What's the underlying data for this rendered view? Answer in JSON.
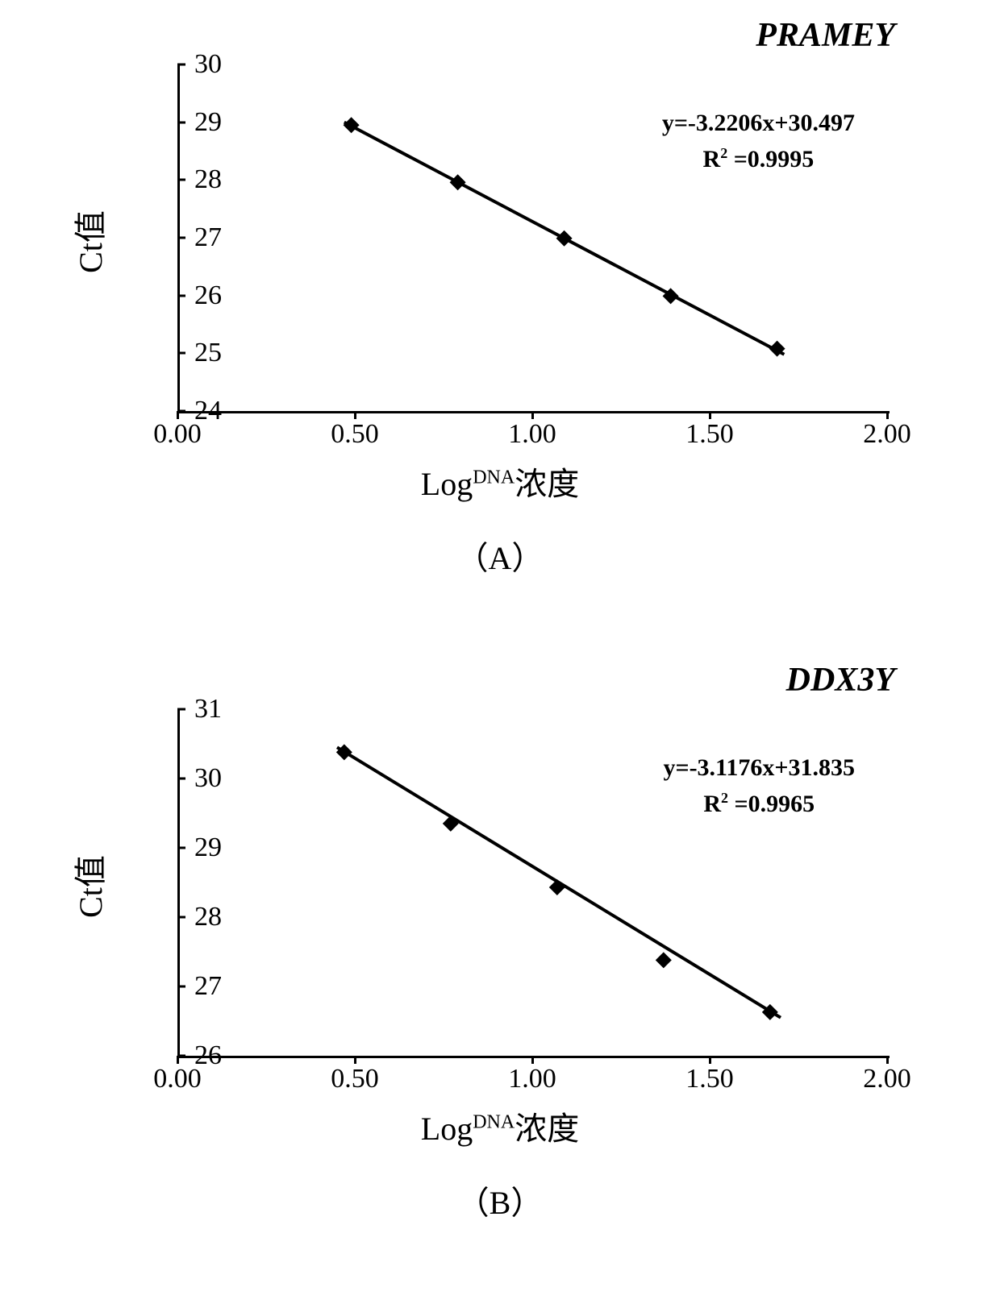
{
  "panels": [
    {
      "id": "A",
      "title": "PRAMEY",
      "panel_label": "（A）",
      "ylabel": "Ct值",
      "xlabel_prefix": "Log",
      "xlabel_super": "DNA",
      "xlabel_suffix": "浓度",
      "equation_line1": "y=-3.2206x+30.497",
      "equation_r2_label": "R",
      "equation_r2_value": " =0.9995",
      "xlim": [
        0.0,
        2.0
      ],
      "ylim": [
        24,
        30
      ],
      "xticks": [
        0.0,
        0.5,
        1.0,
        1.5,
        2.0
      ],
      "xtick_labels": [
        "0.00",
        "0.50",
        "1.00",
        "1.50",
        "2.00"
      ],
      "yticks": [
        24,
        25,
        26,
        27,
        28,
        29,
        30
      ],
      "ytick_labels": [
        "24",
        "25",
        "26",
        "27",
        "28",
        "29",
        "30"
      ],
      "points": [
        {
          "x": 0.49,
          "y": 28.95
        },
        {
          "x": 0.79,
          "y": 27.96
        },
        {
          "x": 1.09,
          "y": 26.99
        },
        {
          "x": 1.39,
          "y": 25.99
        },
        {
          "x": 1.69,
          "y": 25.08
        }
      ],
      "fit_line": {
        "x1": 0.47,
        "y1": 29.0,
        "x2": 1.71,
        "y2": 24.98
      },
      "line_color": "#000000",
      "marker_color": "#000000",
      "line_width": 4,
      "marker_size": 10,
      "background_color": "#ffffff",
      "title_fontsize": 42,
      "axis_label_fontsize": 40,
      "tick_fontsize": 34,
      "equation_fontsize": 30
    },
    {
      "id": "B",
      "title": "DDX3Y",
      "panel_label": "（B）",
      "ylabel": "Ct值",
      "xlabel_prefix": "Log",
      "xlabel_super": "DNA",
      "xlabel_suffix": "浓度",
      "equation_line1": "y=-3.1176x+31.835",
      "equation_r2_label": "R",
      "equation_r2_value": " =0.9965",
      "xlim": [
        0.0,
        2.0
      ],
      "ylim": [
        26,
        31
      ],
      "xticks": [
        0.0,
        0.5,
        1.0,
        1.5,
        2.0
      ],
      "xtick_labels": [
        "0.00",
        "0.50",
        "1.00",
        "1.50",
        "2.00"
      ],
      "yticks": [
        26,
        27,
        28,
        29,
        30,
        31
      ],
      "ytick_labels": [
        "26",
        "27",
        "28",
        "29",
        "30",
        "31"
      ],
      "points": [
        {
          "x": 0.47,
          "y": 30.38
        },
        {
          "x": 0.77,
          "y": 29.35
        },
        {
          "x": 1.07,
          "y": 28.43
        },
        {
          "x": 1.37,
          "y": 27.38
        },
        {
          "x": 1.67,
          "y": 26.63
        }
      ],
      "fit_line": {
        "x1": 0.45,
        "y1": 30.45,
        "x2": 1.7,
        "y2": 26.55
      },
      "line_color": "#000000",
      "marker_color": "#000000",
      "line_width": 4,
      "marker_size": 10,
      "background_color": "#ffffff",
      "title_fontsize": 42,
      "axis_label_fontsize": 40,
      "tick_fontsize": 34,
      "equation_fontsize": 30
    }
  ]
}
